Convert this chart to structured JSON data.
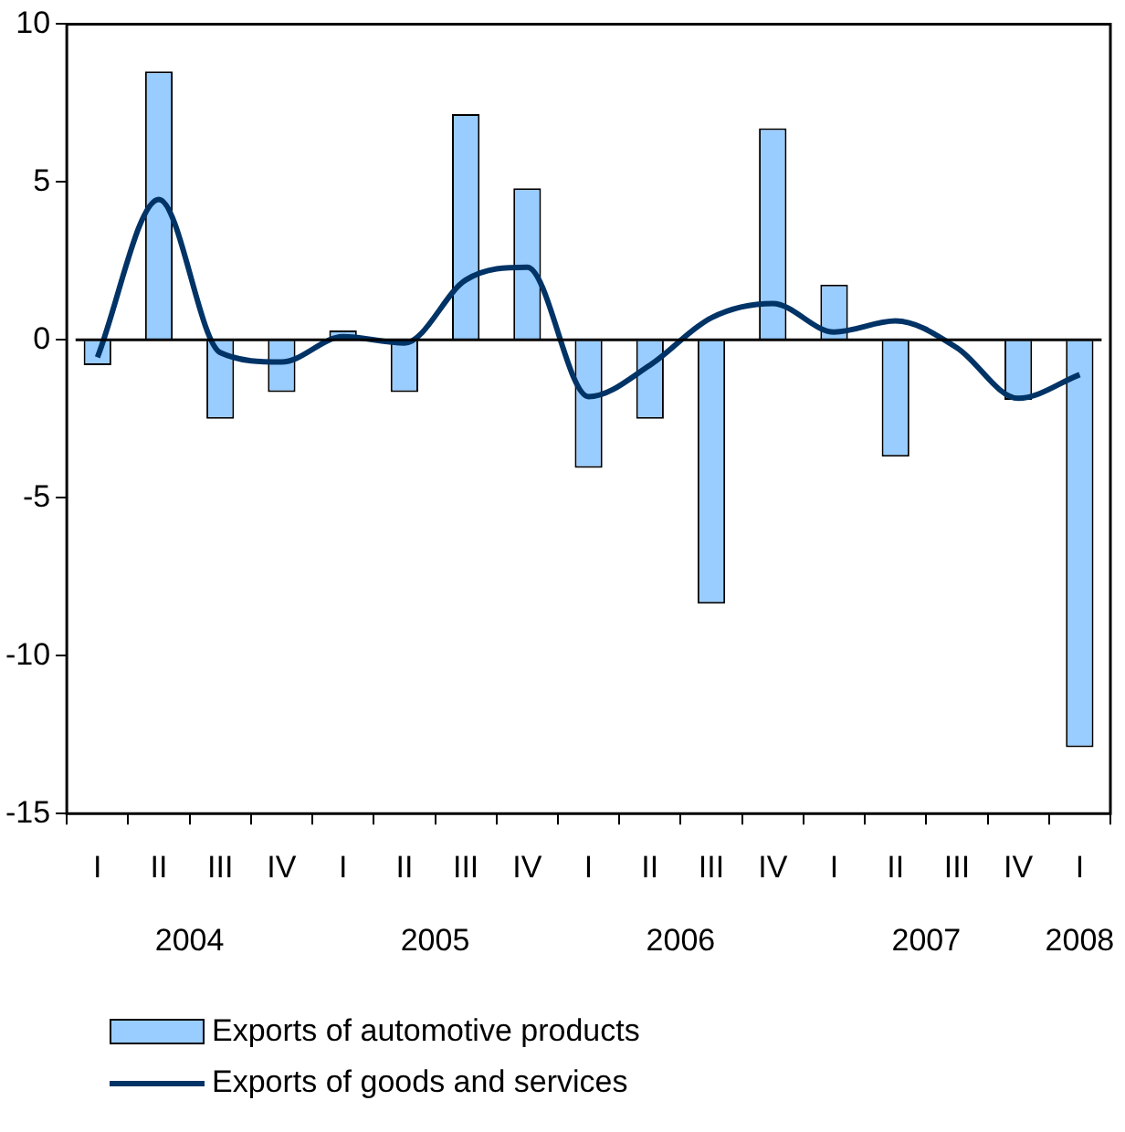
{
  "chart_data": {
    "type": "bar",
    "categories": [
      "I",
      "II",
      "III",
      "IV",
      "I",
      "II",
      "III",
      "IV",
      "I",
      "II",
      "III",
      "IV",
      "I",
      "II",
      "III",
      "IV",
      "I"
    ],
    "series": [
      {
        "name": "Exports of automotive products",
        "color": "#99ccff",
        "values": [
          -0.8,
          8.5,
          -2.5,
          -1.65,
          0.3,
          -1.65,
          7.15,
          4.8,
          -4.05,
          -2.5,
          -8.35,
          6.7,
          1.75,
          -3.7,
          0,
          -1.9,
          -12.9
        ]
      },
      {
        "name": "Exports of goods and services",
        "type": "line",
        "color": "#003366",
        "values": [
          -0.55,
          4.45,
          -0.4,
          -0.7,
          0.1,
          -0.1,
          1.9,
          2.3,
          -1.8,
          -0.8,
          0.7,
          1.15,
          0.25,
          0.6,
          -0.25,
          -1.85,
          -1.1
        ]
      }
    ],
    "annotations": [
      "2004",
      "2005",
      "2006",
      "2007",
      "2008"
    ],
    "ylim": [
      -15,
      10
    ],
    "yticks": [
      -15,
      -10,
      -5,
      0,
      5,
      10
    ],
    "legend": "bottom",
    "marker": "none",
    "line_style": "solid"
  }
}
